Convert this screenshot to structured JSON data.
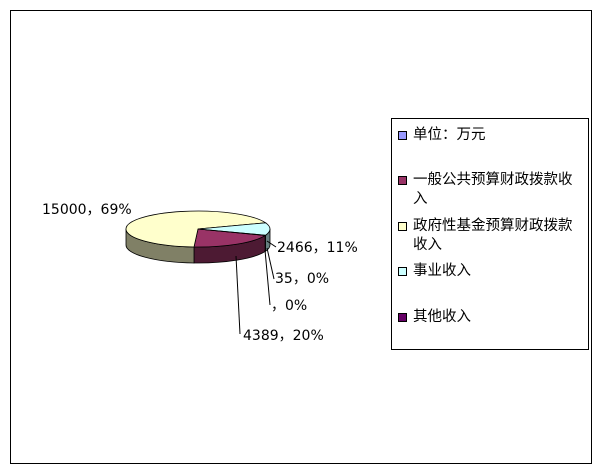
{
  "chart_data": {
    "type": "pie",
    "title": "",
    "legend_placement": "right",
    "legend": [
      {
        "label": "单位：万元",
        "color": "#9999ff"
      },
      {
        "label": "一般公共预算财政拨款收入",
        "color": "#993366"
      },
      {
        "label": "政府性基金预算财政拨款收入",
        "color": "#ffffcc"
      },
      {
        "label": "事业收入",
        "color": "#ccffff"
      },
      {
        "label": "其他收入",
        "color": "#660066"
      }
    ],
    "slices": [
      {
        "name": "一般公共预算财政拨款收入",
        "value": 4389,
        "percent": 20,
        "label": "4389，20%",
        "color": "#993366"
      },
      {
        "name": "政府性基金预算财政拨款收入",
        "value": 15000,
        "percent": 69,
        "label": "15000，69%",
        "color": "#ffffcc"
      },
      {
        "name": "事业收入",
        "value": 2466,
        "percent": 11,
        "label": "2466，11%",
        "color": "#ccffff"
      },
      {
        "name": "",
        "value": 35,
        "percent": 0,
        "label": "35，0%",
        "color": "#660066"
      },
      {
        "name": "",
        "value": 0,
        "percent": 0,
        "label": "，0%",
        "color": "#9999ff"
      }
    ]
  }
}
